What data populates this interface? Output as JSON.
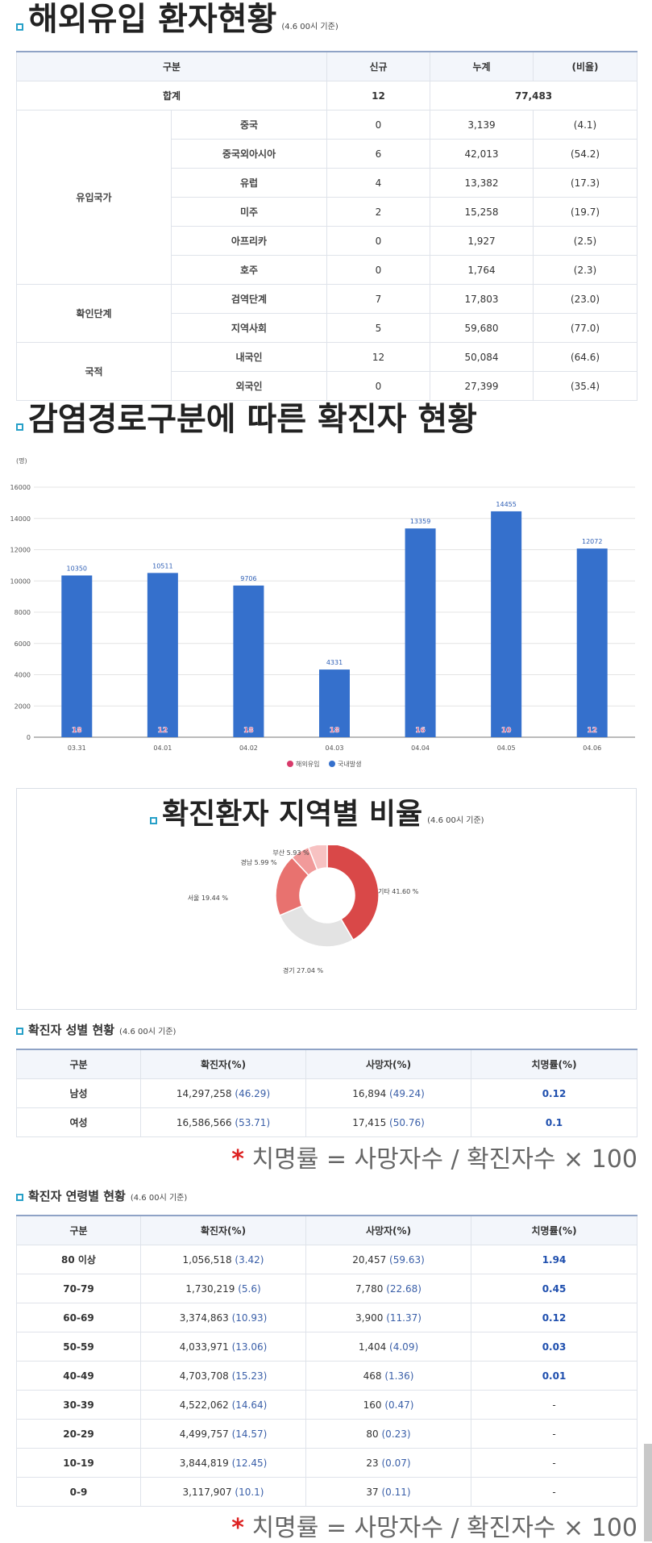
{
  "section1": {
    "title": "해외유입 환자현황",
    "base": "(4.6 00시 기준)",
    "headers": [
      "구분",
      "신규",
      "누계",
      "(비율)"
    ],
    "total": {
      "label": "합계",
      "new": "12",
      "cum": "77,483"
    },
    "groups": [
      {
        "name": "유입국가",
        "rows": [
          [
            "중국",
            "0",
            "3,139",
            "(4.1)"
          ],
          [
            "중국외아시아",
            "6",
            "42,013",
            "(54.2)"
          ],
          [
            "유럽",
            "4",
            "13,382",
            "(17.3)"
          ],
          [
            "미주",
            "2",
            "15,258",
            "(19.7)"
          ],
          [
            "아프리카",
            "0",
            "1,927",
            "(2.5)"
          ],
          [
            "호주",
            "0",
            "1,764",
            "(2.3)"
          ]
        ]
      },
      {
        "name": "확인단계",
        "rows": [
          [
            "검역단계",
            "7",
            "17,803",
            "(23.0)"
          ],
          [
            "지역사회",
            "5",
            "59,680",
            "(77.0)"
          ]
        ]
      },
      {
        "name": "국적",
        "rows": [
          [
            "내국인",
            "12",
            "50,084",
            "(64.6)"
          ],
          [
            "외국인",
            "0",
            "27,399",
            "(35.4)"
          ]
        ]
      }
    ]
  },
  "section2": {
    "title": "감염경로구분에 따른 확진자 현황"
  },
  "chart_data": {
    "type": "bar",
    "unit": "(명)",
    "categories": [
      "03.31",
      "04.01",
      "04.02",
      "04.03",
      "04.04",
      "04.05",
      "04.06"
    ],
    "ylim": [
      0,
      16000
    ],
    "yticks": [
      "0",
      "2000",
      "4000",
      "6000",
      "8000",
      "10000",
      "12000",
      "14000",
      "16000"
    ],
    "series": [
      {
        "name": "해외유입",
        "color": "#d83a6a",
        "values": [
          18,
          12,
          18,
          18,
          16,
          10,
          12
        ]
      },
      {
        "name": "국내발생",
        "color": "#3570cc",
        "values": [
          10350,
          10511,
          9706,
          4331,
          13359,
          14455,
          12072
        ]
      }
    ],
    "legend": "bottom"
  },
  "section3": {
    "title": "확진환자 지역별 비율",
    "base": "(4.6 00시 기준)",
    "donut": [
      {
        "label": "기타 41.60 %",
        "value": 41.6,
        "color": "#d94848"
      },
      {
        "label": "경기 27.04 %",
        "value": 27.04,
        "color": "#e3e3e3"
      },
      {
        "label": "서울 19.44 %",
        "value": 19.44,
        "color": "#e8726f"
      },
      {
        "label": "경남 5.99 %",
        "value": 5.99,
        "color": "#f19a9a"
      },
      {
        "label": "부산 5.93 %",
        "value": 5.93,
        "color": "#f7c2c2"
      }
    ]
  },
  "section4": {
    "title": "확진자 성별 현황",
    "base": "(4.6 00시 기준)",
    "headers": [
      "구분",
      "확진자(%)",
      "사망자(%)",
      "치명률(%)"
    ],
    "rows": [
      [
        "남성",
        "14,297,258",
        "(46.29)",
        "16,894",
        "(49.24)",
        "0.12"
      ],
      [
        "여성",
        "16,586,566",
        "(53.71)",
        "17,415",
        "(50.76)",
        "0.1"
      ]
    ]
  },
  "formula": {
    "star": "*",
    "text": "치명률 = 사망자수 / 확진자수 × 100"
  },
  "section5": {
    "title": "확진자 연령별 현황",
    "base": "(4.6 00시 기준)",
    "headers": [
      "구분",
      "확진자(%)",
      "사망자(%)",
      "치명률(%)"
    ],
    "rows": [
      [
        "80 이상",
        "1,056,518",
        "(3.42)",
        "20,457",
        "(59.63)",
        "1.94"
      ],
      [
        "70-79",
        "1,730,219",
        "(5.6)",
        "7,780",
        "(22.68)",
        "0.45"
      ],
      [
        "60-69",
        "3,374,863",
        "(10.93)",
        "3,900",
        "(11.37)",
        "0.12"
      ],
      [
        "50-59",
        "4,033,971",
        "(13.06)",
        "1,404",
        "(4.09)",
        "0.03"
      ],
      [
        "40-49",
        "4,703,708",
        "(15.23)",
        "468",
        "(1.36)",
        "0.01"
      ],
      [
        "30-39",
        "4,522,062",
        "(14.64)",
        "160",
        "(0.47)",
        "-"
      ],
      [
        "20-29",
        "4,499,757",
        "(14.57)",
        "80",
        "(0.23)",
        "-"
      ],
      [
        "10-19",
        "3,844,819",
        "(12.45)",
        "23",
        "(0.07)",
        "-"
      ],
      [
        "0-9",
        "3,117,907",
        "(10.1)",
        "37",
        "(0.11)",
        "-"
      ]
    ]
  }
}
